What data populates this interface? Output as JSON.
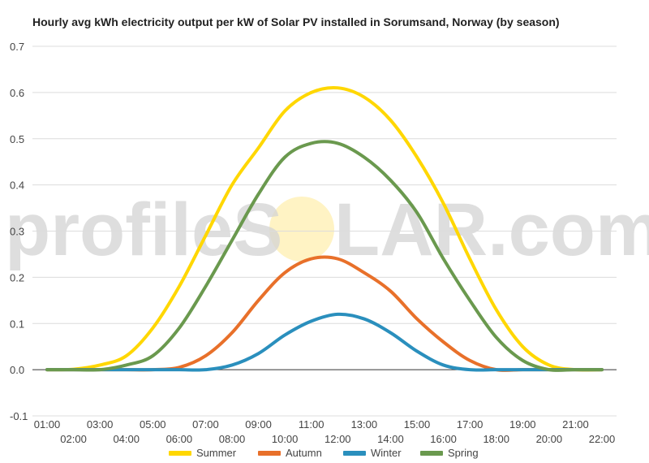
{
  "watermark": {
    "text_left": "profileS",
    "text_right": "LAR.com",
    "sun_color": "#fff3c4"
  },
  "chart_data": {
    "type": "line",
    "title": "Hourly avg kWh electricity output per kW of Solar PV installed in Sorumsand, Norway (by season)",
    "xlabel": "",
    "ylabel": "",
    "ylim": [
      -0.1,
      0.7
    ],
    "y_ticks": [
      "-0.1",
      "0.0",
      "0.1",
      "0.2",
      "0.3",
      "0.4",
      "0.5",
      "0.6",
      "0.7"
    ],
    "y_tick_values": [
      -0.1,
      0,
      0.1,
      0.2,
      0.3,
      0.4,
      0.5,
      0.6,
      0.7
    ],
    "grid": true,
    "legend": "bottom",
    "x": [
      "01:00",
      "02:00",
      "03:00",
      "04:00",
      "05:00",
      "06:00",
      "07:00",
      "08:00",
      "09:00",
      "10:00",
      "11:00",
      "12:00",
      "13:00",
      "14:00",
      "15:00",
      "16:00",
      "17:00",
      "18:00",
      "19:00",
      "20:00",
      "21:00",
      "22:00"
    ],
    "series": [
      {
        "name": "Summer",
        "color": "#ffd700",
        "values": [
          0,
          0.001,
          0.01,
          0.03,
          0.09,
          0.18,
          0.29,
          0.4,
          0.48,
          0.56,
          0.6,
          0.61,
          0.59,
          0.54,
          0.46,
          0.36,
          0.24,
          0.13,
          0.05,
          0.01,
          0,
          0
        ]
      },
      {
        "name": "Autumn",
        "color": "#e8702a",
        "values": [
          0,
          0,
          0,
          0,
          0,
          0.005,
          0.03,
          0.08,
          0.15,
          0.21,
          0.24,
          0.24,
          0.21,
          0.17,
          0.11,
          0.06,
          0.02,
          0,
          0,
          0,
          0,
          0
        ]
      },
      {
        "name": "Winter",
        "color": "#2a8fbd",
        "values": [
          0,
          0,
          0,
          0,
          0,
          0,
          0,
          0.01,
          0.035,
          0.075,
          0.105,
          0.12,
          0.11,
          0.08,
          0.04,
          0.01,
          0,
          0,
          0,
          0,
          0,
          0
        ]
      },
      {
        "name": "Spring",
        "color": "#6a994e",
        "values": [
          0,
          0,
          0,
          0.01,
          0.03,
          0.09,
          0.18,
          0.28,
          0.38,
          0.46,
          0.49,
          0.49,
          0.46,
          0.41,
          0.34,
          0.24,
          0.15,
          0.07,
          0.02,
          0,
          0,
          0
        ]
      }
    ]
  }
}
